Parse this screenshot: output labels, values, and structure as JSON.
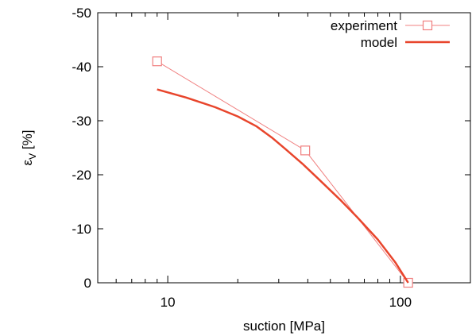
{
  "chart_data": {
    "type": "line",
    "xlabel": "suction [MPa]",
    "ylabel": "ε",
    "ylabel_sub": "V",
    "ylabel_unit": " [%]",
    "xscale": "log",
    "xlim": [
      5,
      200
    ],
    "ylim": [
      0,
      -50
    ],
    "y_inverted": true,
    "xticks": [
      {
        "value": 10,
        "label": "10"
      },
      {
        "value": 100,
        "label": "100"
      }
    ],
    "yticks": [
      {
        "value": 0,
        "label": "0"
      },
      {
        "value": -10,
        "label": "-10"
      },
      {
        "value": -20,
        "label": "-20"
      },
      {
        "value": -30,
        "label": "-30"
      },
      {
        "value": -40,
        "label": "-40"
      },
      {
        "value": -50,
        "label": "-50"
      }
    ],
    "grid": false,
    "legend_position": "top-right",
    "series": [
      {
        "name": "experiment",
        "style": "line-square-markers",
        "color": "#f08080",
        "x": [
          9,
          39,
          108
        ],
        "y": [
          -41,
          -24.5,
          0
        ]
      },
      {
        "name": "model",
        "style": "line",
        "color": "#e8452c",
        "x": [
          9,
          12,
          16,
          20,
          24,
          28,
          32,
          38,
          45,
          55,
          65,
          80,
          95,
          108
        ],
        "y": [
          -35.8,
          -34.3,
          -32.5,
          -30.8,
          -29,
          -26.9,
          -24.8,
          -22,
          -19,
          -15.4,
          -12.2,
          -8,
          -3.8,
          0
        ]
      }
    ]
  }
}
